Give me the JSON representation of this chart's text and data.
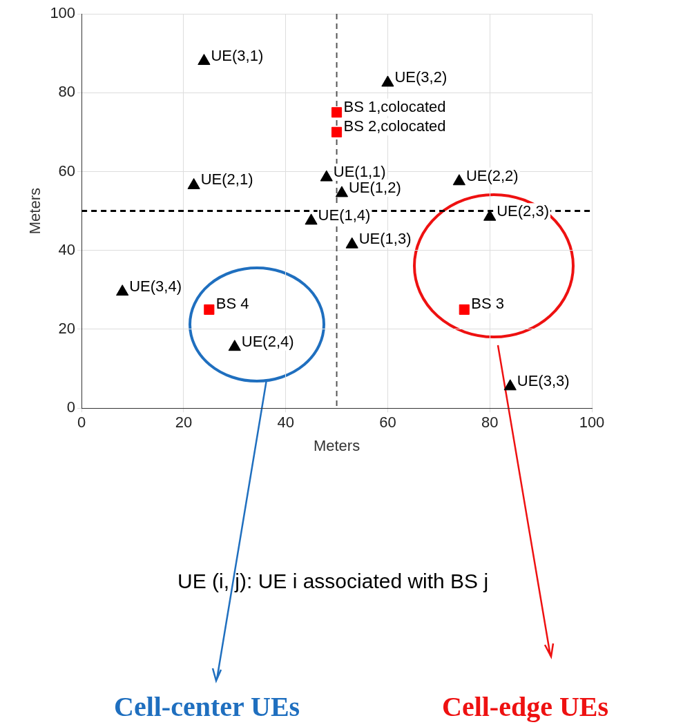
{
  "chart_data": {
    "type": "scatter",
    "xlabel": "Meters",
    "ylabel": "Meters",
    "xlim": [
      0,
      100
    ],
    "xticks": [
      0,
      20,
      40,
      60,
      80,
      100
    ],
    "ylim": [
      0,
      100
    ],
    "yticks": [
      0,
      20,
      40,
      60,
      80,
      100
    ],
    "grid": true,
    "legend": false,
    "series": [
      {
        "color": "#000000",
        "marker": "triangle",
        "x": [
          24,
          60,
          22,
          48,
          51,
          74,
          80,
          45,
          53,
          8,
          30,
          84
        ],
        "values": [
          88,
          82.5,
          56.5,
          58.5,
          54.5,
          57.5,
          48.5,
          47.5,
          41.5,
          29.5,
          15.5,
          5.5
        ],
        "value_labels": [
          "UE(3,1)",
          "UE(3,2)",
          "UE(2,1)",
          "UE(1,1)",
          "UE(1,2)",
          "UE(2,2)",
          "UE(2,3)",
          "UE(1,4)",
          "UE(1,3)",
          "UE(3,4)",
          "UE(2,4)",
          "UE(3,3)"
        ]
      },
      {
        "color": "#ff0000",
        "marker": "square",
        "x": [
          50,
          50,
          25,
          75
        ],
        "values": [
          75,
          70,
          25,
          25
        ],
        "value_labels": [
          "BS 1,colocated",
          "BS 2,colocated",
          "BS 4",
          "BS 3"
        ]
      }
    ],
    "ref_lines": [
      {
        "axis": "x",
        "value": 50,
        "color": "#555555",
        "line_style": "dashed"
      },
      {
        "axis": "y",
        "value": 50,
        "color": "#000000",
        "line_style": "dashed"
      }
    ],
    "annotations": [
      "UE (i, j): UE i associated with BS j",
      "Cell-center UEs",
      "Cell-edge UEs"
    ]
  }
}
